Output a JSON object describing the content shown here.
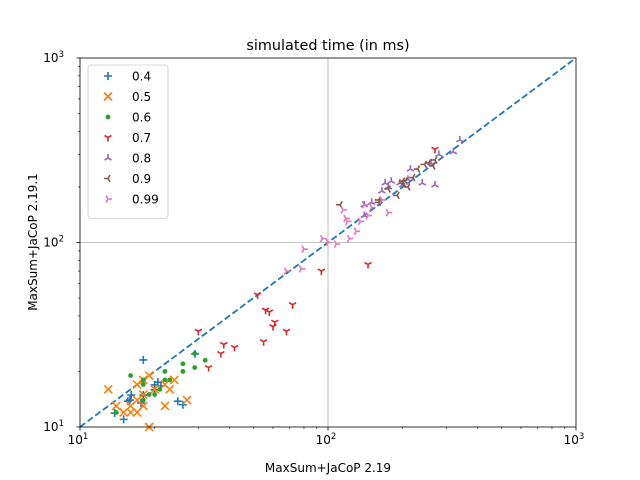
{
  "chart_data": {
    "type": "scatter",
    "title": "simulated time (in ms)",
    "xlabel": "MaxSum+JaCoP 2.19",
    "ylabel": "MaxSum+JaCoP 2.19.1",
    "xscale": "log",
    "yscale": "log",
    "xlim": [
      10,
      1000
    ],
    "ylim": [
      10,
      1000
    ],
    "xticks": [
      {
        "v": 10,
        "base": "10",
        "exp": "1"
      },
      {
        "v": 100,
        "base": "10",
        "exp": "2"
      },
      {
        "v": 1000,
        "base": "10",
        "exp": "3"
      }
    ],
    "yticks": [
      {
        "v": 10,
        "base": "10",
        "exp": "1"
      },
      {
        "v": 100,
        "base": "10",
        "exp": "2"
      },
      {
        "v": 1000,
        "base": "10",
        "exp": "3"
      }
    ],
    "grid": "major lines at 10^2",
    "reference_line": {
      "style": "dashed",
      "from": [
        10,
        10
      ],
      "to": [
        1000,
        1000
      ],
      "color": "#1f77b4"
    },
    "legend_position": "top-left",
    "series": [
      {
        "name": "0.4",
        "marker": "plus",
        "color": "#1f77b4",
        "points": [
          [
            13.8,
            11.9
          ],
          [
            15.0,
            11.0
          ],
          [
            15.9,
            14.0
          ],
          [
            18.0,
            23.1
          ],
          [
            20.0,
            16.9
          ],
          [
            20.6,
            17.5
          ],
          [
            20.0,
            15.9
          ],
          [
            18.0,
            14.9
          ],
          [
            17.6,
            13.5
          ],
          [
            15.6,
            13.8
          ],
          [
            21.2,
            16.7
          ],
          [
            26.0,
            13.2
          ],
          [
            24.8,
            13.8
          ],
          [
            29.1,
            24.9
          ],
          [
            16.1,
            14.9
          ]
        ]
      },
      {
        "name": "0.5",
        "marker": "x",
        "color": "#ff7f0e",
        "points": [
          [
            13,
            16
          ],
          [
            14,
            13
          ],
          [
            15,
            12
          ],
          [
            16,
            13
          ],
          [
            17,
            14
          ],
          [
            17,
            12
          ],
          [
            18,
            13
          ],
          [
            18,
            15
          ],
          [
            19,
            19
          ],
          [
            19,
            10
          ],
          [
            20,
            16
          ],
          [
            22,
            17
          ],
          [
            22,
            13
          ],
          [
            23,
            16
          ],
          [
            24,
            18
          ],
          [
            27,
            14
          ],
          [
            16,
            12
          ],
          [
            18,
            18
          ],
          [
            17,
            17
          ]
        ]
      },
      {
        "name": "0.6",
        "marker": "dot",
        "color": "#2ca02c",
        "points": [
          [
            14,
            12
          ],
          [
            16,
            19
          ],
          [
            18,
            17
          ],
          [
            18,
            18
          ],
          [
            20,
            15
          ],
          [
            21,
            16
          ],
          [
            22,
            20
          ],
          [
            22,
            18
          ],
          [
            23,
            18
          ],
          [
            26,
            22
          ],
          [
            26,
            20
          ],
          [
            29,
            25
          ],
          [
            29,
            21
          ],
          [
            32,
            23
          ],
          [
            19,
            15
          ],
          [
            18,
            14
          ]
        ]
      },
      {
        "name": "0.7",
        "marker": "tri_down",
        "color": "#d62728",
        "points": [
          [
            30,
            33
          ],
          [
            33,
            21
          ],
          [
            37,
            25
          ],
          [
            38,
            28
          ],
          [
            42,
            27
          ],
          [
            52,
            52
          ],
          [
            55,
            29
          ],
          [
            56,
            43
          ],
          [
            58,
            42
          ],
          [
            60,
            35
          ],
          [
            61,
            37
          ],
          [
            68,
            33
          ],
          [
            72,
            46
          ],
          [
            94,
            70
          ],
          [
            145,
            76
          ],
          [
            270,
            320
          ]
        ]
      },
      {
        "name": "0.8",
        "marker": "tri_up",
        "color": "#9467bd",
        "points": [
          [
            140,
            160
          ],
          [
            150,
            165
          ],
          [
            165,
            190
          ],
          [
            170,
            210
          ],
          [
            175,
            200
          ],
          [
            180,
            215
          ],
          [
            195,
            210
          ],
          [
            200,
            205
          ],
          [
            210,
            220
          ],
          [
            215,
            250
          ],
          [
            240,
            210
          ],
          [
            260,
            270
          ],
          [
            270,
            205
          ],
          [
            280,
            300
          ],
          [
            320,
            310
          ],
          [
            340,
            360
          ],
          [
            140,
            140
          ]
        ]
      },
      {
        "name": "0.9",
        "marker": "tri_left",
        "color": "#8c564b",
        "points": [
          [
            112,
            160
          ],
          [
            160,
            165
          ],
          [
            175,
            195
          ],
          [
            190,
            180
          ],
          [
            200,
            210
          ],
          [
            205,
            215
          ],
          [
            210,
            200
          ],
          [
            220,
            225
          ],
          [
            230,
            250
          ],
          [
            245,
            265
          ],
          [
            255,
            270
          ],
          [
            265,
            260
          ],
          [
            270,
            280
          ],
          [
            160,
            170
          ],
          [
            200,
            215
          ]
        ]
      },
      {
        "name": "0.99",
        "marker": "tri_right",
        "color": "#e377c2",
        "points": [
          [
            68,
            70
          ],
          [
            78,
            72
          ],
          [
            80,
            92
          ],
          [
            95,
            105
          ],
          [
            100,
            100
          ],
          [
            108,
            98
          ],
          [
            115,
            150
          ],
          [
            118,
            135
          ],
          [
            122,
            105
          ],
          [
            130,
            115
          ],
          [
            135,
            130
          ],
          [
            140,
            160
          ],
          [
            145,
            140
          ],
          [
            150,
            155
          ],
          [
            165,
            170
          ],
          [
            175,
            145
          ],
          [
            120,
            130
          ]
        ]
      }
    ]
  }
}
